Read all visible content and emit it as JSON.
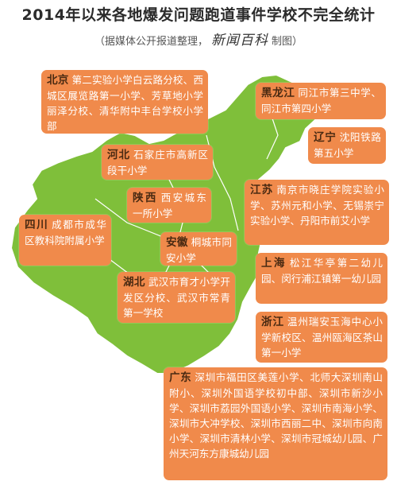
{
  "header": {
    "title": "2014年以来各地爆发问题跑道事件学校不完全统计",
    "subtitle_left": "（据媒体公开报道整理，",
    "brand": "新闻百科",
    "subtitle_right": "制图）"
  },
  "colors": {
    "box_bg": "#f08a4b",
    "map_green": "#7fbf3a",
    "province_text": "#4a2a12"
  },
  "regions": [
    {
      "province": "北京",
      "schools": "第二实验小学白云路分校、西城区展览路第一小学、芳草地小学丽泽分校、清华附中丰台学校小学部"
    },
    {
      "province": "黑龙江",
      "schools": "同江市第三中学、同江市第四小学"
    },
    {
      "province": "辽宁",
      "schools": "沈阳铁路第五小学"
    },
    {
      "province": "河北",
      "schools": "石家庄市高新区段干小学"
    },
    {
      "province": "陕西",
      "schools": "西安城东一所小学"
    },
    {
      "province": "江苏",
      "schools": "南京市晓庄学院实验小学、苏州元和小学、无锡崇宁实验小学、丹阳市前艾小学"
    },
    {
      "province": "四川",
      "schools": "成都市成华区教科院附属小学"
    },
    {
      "province": "安徽",
      "schools": "桐城市同安小学"
    },
    {
      "province": "上海",
      "schools": "松江华亭第二幼儿园、闵行浦江镇第一幼儿园"
    },
    {
      "province": "湖北",
      "schools": "武汉市育才小学开发区分校、武汉市常青第一学校"
    },
    {
      "province": "浙江",
      "schools": "温州瑞安玉海中心小学新校区、温州瓯海区茶山第一小学"
    },
    {
      "province": "广东",
      "schools": "深圳市福田区美莲小学、北师大深圳南山附小、深圳外国语学校初中部、深圳市新沙小学、深圳市荔园外国语小学、深圳市南海小学、深圳市大冲学校、深圳市西丽二中、深圳市向南小学、深圳市清林小学、深圳市冠城幼儿园、广州天河东方康城幼儿园"
    }
  ]
}
